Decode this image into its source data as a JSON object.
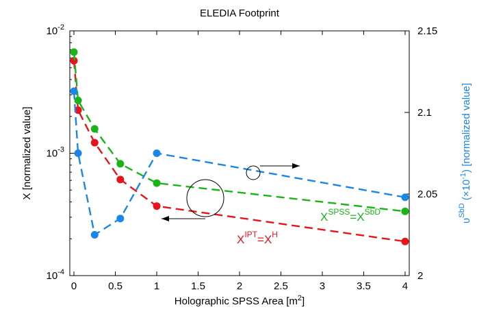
{
  "chart_data": {
    "type": "line",
    "title": "ELEDIA Footprint",
    "xlabel": "Holographic SPSS Area [m",
    "xlabel_sup": "2",
    "xlabel_end": "]",
    "ylabel": "X [normalized value]",
    "y2label_prefix": "υ",
    "y2label_sup": "SbD",
    "y2label_mid": " (×10",
    "y2label_exp": "-1",
    "y2label_end": ") [normalized value]",
    "xlim": [
      -0.05,
      4.05
    ],
    "ylim_log": [
      0.0001,
      0.01
    ],
    "y2lim": [
      2.0,
      2.15
    ],
    "x_ticks": [
      {
        "v": 0,
        "label": "0"
      },
      {
        "v": 0.5,
        "label": "0.5"
      },
      {
        "v": 1,
        "label": "1"
      },
      {
        "v": 1.5,
        "label": "1.5"
      },
      {
        "v": 2,
        "label": "2"
      },
      {
        "v": 2.5,
        "label": "2.5"
      },
      {
        "v": 3,
        "label": "3"
      },
      {
        "v": 3.5,
        "label": "3.5"
      },
      {
        "v": 4,
        "label": "4"
      }
    ],
    "y_ticks": [
      {
        "v": 0.0001,
        "base": "10",
        "exp": "-4"
      },
      {
        "v": 0.001,
        "base": "10",
        "exp": "-3"
      },
      {
        "v": 0.01,
        "base": "10",
        "exp": "-2"
      }
    ],
    "y2_ticks": [
      {
        "v": 2.0,
        "label": "2"
      },
      {
        "v": 2.05,
        "label": "2.05"
      },
      {
        "v": 2.1,
        "label": "2.1"
      },
      {
        "v": 2.15,
        "label": "2.15"
      }
    ],
    "series": [
      {
        "key": "red",
        "axis": "left",
        "color": "#e8141c",
        "x": [
          0,
          0.05,
          0.25,
          0.56,
          1,
          4
        ],
        "y": [
          0.0057,
          0.00225,
          0.00122,
          0.00061,
          0.00037,
          0.00019
        ]
      },
      {
        "key": "green",
        "axis": "left",
        "color": "#18b418",
        "x": [
          0,
          0.05,
          0.25,
          0.56,
          1,
          4
        ],
        "y": [
          0.0067,
          0.0027,
          0.00158,
          0.00082,
          0.00057,
          0.000335
        ]
      },
      {
        "key": "blue",
        "axis": "right",
        "color": "#1a86e8",
        "x": [
          0,
          0.05,
          0.25,
          0.56,
          1,
          4
        ],
        "y": [
          2.113,
          2.075,
          2.025,
          2.035,
          2.075,
          2.048
        ]
      }
    ],
    "annotations": {
      "green_label": {
        "x": "X",
        "sup1": "SPSS",
        "eq": "=",
        "x2": "X",
        "sup2": "SbD",
        "color": "#18b418"
      },
      "red_label": {
        "x": "X",
        "sup1": "IPT",
        "eq": "=",
        "x2": "X",
        "sup2": "H",
        "color": "#e8141c"
      }
    }
  }
}
